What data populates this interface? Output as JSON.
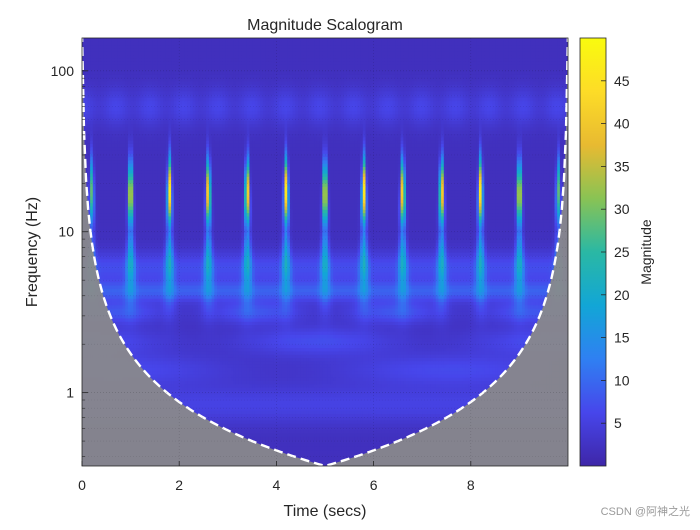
{
  "watermark": "CSDN @阿神之光",
  "chart_data": {
    "type": "heatmap",
    "title": "Magnitude Scalogram",
    "xlabel": "Time (secs)",
    "ylabel": "Frequency (Hz)",
    "xlim": [
      0,
      10
    ],
    "ylim": [
      0.35,
      160
    ],
    "yscale": "log",
    "x_ticks": [
      0,
      2,
      4,
      6,
      8
    ],
    "y_ticks": [
      1,
      10,
      100
    ],
    "y_tick_labels": [
      "1",
      "10",
      "100"
    ],
    "colorbar": {
      "label": "Magnitude",
      "range": [
        0,
        50
      ],
      "ticks": [
        5,
        10,
        15,
        20,
        25,
        30,
        35,
        40,
        45
      ],
      "colormap": "parula",
      "colors": [
        "#3e26a8",
        "#4746eb",
        "#2f80f2",
        "#12a6d6",
        "#2ab8a4",
        "#89c354",
        "#e8ba31",
        "#fddc27",
        "#f9fb0e"
      ]
    },
    "impulse_times": [
      0.2,
      1.0,
      1.8,
      2.6,
      3.4,
      4.2,
      5.0,
      5.8,
      6.6,
      7.4,
      8.2,
      9.0,
      9.8
    ],
    "impulse_peak_frequency_hz": 18,
    "impulse_peak_magnitude": 45,
    "cone_of_influence": {
      "style": "white dashed",
      "shaded_color": "#8a8a8a",
      "min_frequency_hz": 0.35,
      "min_at_time": 5.0
    },
    "grid": true
  }
}
